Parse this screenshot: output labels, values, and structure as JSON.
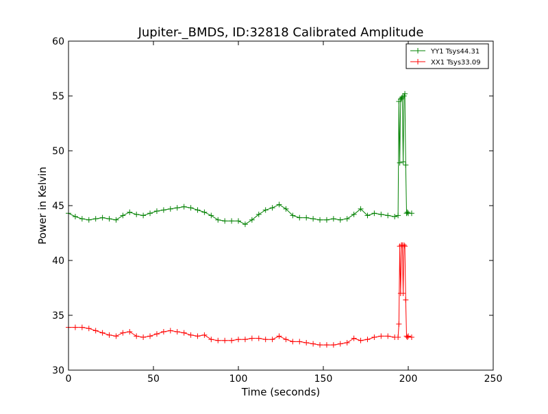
{
  "chart_data": {
    "type": "line",
    "title": "Jupiter-_BMDS, ID:32818 Calibrated Amplitude",
    "xlabel": "Time (seconds)",
    "ylabel": "Power in Kelvin",
    "xlim": [
      0,
      250
    ],
    "ylim": [
      30,
      60
    ],
    "x_ticks": [
      0,
      50,
      100,
      150,
      200,
      250
    ],
    "y_ticks": [
      30,
      35,
      40,
      45,
      50,
      55,
      60
    ],
    "grid": false,
    "legend_position": "top-right",
    "marker": "+",
    "series": [
      {
        "name": "YY1 Tsys44.31",
        "color": "#008000",
        "x": [
          0,
          4,
          8,
          12,
          16,
          20,
          24,
          28,
          32,
          36,
          40,
          44,
          48,
          52,
          56,
          60,
          64,
          68,
          72,
          76,
          80,
          84,
          88,
          92,
          96,
          100,
          104,
          108,
          112,
          116,
          120,
          124,
          128,
          132,
          136,
          140,
          144,
          148,
          152,
          156,
          160,
          164,
          168,
          172,
          176,
          180,
          184,
          188,
          192,
          194,
          194.5,
          195,
          195.5,
          196,
          196.5,
          197,
          197.5,
          198,
          198.5,
          199,
          199.5,
          200,
          202
        ],
        "y": [
          44.3,
          44.0,
          43.8,
          43.7,
          43.8,
          43.9,
          43.8,
          43.7,
          44.1,
          44.4,
          44.2,
          44.1,
          44.3,
          44.5,
          44.6,
          44.7,
          44.8,
          44.9,
          44.8,
          44.6,
          44.4,
          44.1,
          43.7,
          43.6,
          43.6,
          43.6,
          43.3,
          43.7,
          44.2,
          44.6,
          44.8,
          45.1,
          44.7,
          44.1,
          43.9,
          43.9,
          43.8,
          43.7,
          43.7,
          43.8,
          43.7,
          43.8,
          44.2,
          44.7,
          44.1,
          44.3,
          44.2,
          44.1,
          44.0,
          44.1,
          54.5,
          48.9,
          54.7,
          54.8,
          54.9,
          49.0,
          55.0,
          55.2,
          48.7,
          44.3,
          44.4,
          44.3,
          44.3
        ]
      },
      {
        "name": "XX1 Tsys33.09",
        "color": "#ff0000",
        "x": [
          0,
          4,
          8,
          12,
          16,
          20,
          24,
          28,
          32,
          36,
          40,
          44,
          48,
          52,
          56,
          60,
          64,
          68,
          72,
          76,
          80,
          84,
          88,
          92,
          96,
          100,
          104,
          108,
          112,
          116,
          120,
          124,
          128,
          132,
          136,
          140,
          144,
          148,
          152,
          156,
          160,
          164,
          168,
          172,
          176,
          180,
          184,
          188,
          192,
          194,
          194.5,
          195,
          195.5,
          196,
          196.5,
          197,
          197.5,
          198,
          198.5,
          199,
          199.5,
          200,
          202
        ],
        "y": [
          33.9,
          33.9,
          33.9,
          33.8,
          33.6,
          33.4,
          33.2,
          33.1,
          33.4,
          33.5,
          33.1,
          33.0,
          33.1,
          33.3,
          33.5,
          33.6,
          33.5,
          33.4,
          33.2,
          33.1,
          33.2,
          32.8,
          32.7,
          32.7,
          32.7,
          32.8,
          32.8,
          32.9,
          32.9,
          32.8,
          32.8,
          33.1,
          32.8,
          32.6,
          32.6,
          32.5,
          32.4,
          32.3,
          32.3,
          32.3,
          32.4,
          32.5,
          32.9,
          32.7,
          32.8,
          33.0,
          33.1,
          33.1,
          33.0,
          33.0,
          34.2,
          41.3,
          37.0,
          41.4,
          41.4,
          37.0,
          41.4,
          41.3,
          36.4,
          33.1,
          33.0,
          33.1,
          33.0
        ]
      }
    ]
  }
}
